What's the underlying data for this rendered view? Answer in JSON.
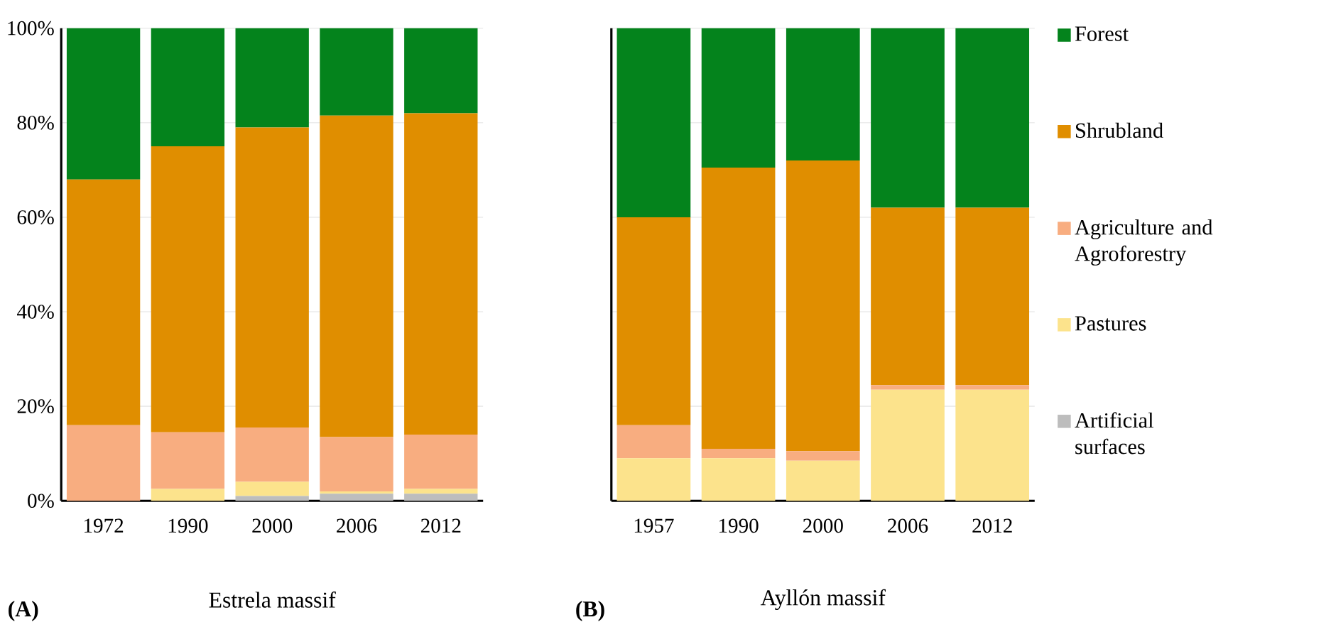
{
  "chart_data": [
    {
      "type": "bar",
      "stacked": true,
      "title": "Estrela massif",
      "annotations": [
        "(A)"
      ],
      "categories": [
        "1972",
        "1990",
        "2000",
        "2006",
        "2012"
      ],
      "ylim": [
        0,
        100
      ],
      "yticks": [
        {
          "value": 0,
          "label": "0%"
        },
        {
          "value": 20,
          "label": "20%"
        },
        {
          "value": 40,
          "label": "40%"
        },
        {
          "value": 60,
          "label": "60%"
        },
        {
          "value": 80,
          "label": "80%"
        },
        {
          "value": 100,
          "label": "100%"
        }
      ],
      "grid": "y",
      "legend": false,
      "series": [
        {
          "color": "#bdbdbd",
          "values": [
            0,
            0,
            1,
            1.5,
            1.5
          ]
        },
        {
          "color": "#fce38c",
          "values": [
            0,
            2.5,
            3,
            0.5,
            1
          ]
        },
        {
          "color": "#f8ad80",
          "values": [
            16,
            12,
            11.5,
            11.5,
            11.5
          ]
        },
        {
          "color": "#e08e00",
          "values": [
            52,
            60.5,
            63.5,
            68,
            68
          ]
        },
        {
          "color": "#04831c",
          "values": [
            32,
            25,
            21,
            18.5,
            18
          ]
        }
      ]
    },
    {
      "type": "bar",
      "stacked": true,
      "title": "Ayllón massif",
      "annotations": [
        "(B)"
      ],
      "categories": [
        "1957",
        "1990",
        "2000",
        "2006",
        "2012"
      ],
      "ylim": [
        0,
        100
      ],
      "yticks": [
        0,
        20,
        40,
        60,
        80,
        100
      ],
      "tick_labels": "x",
      "grid": "y",
      "legend": "right",
      "series": [
        {
          "name": "Artificial surfaces",
          "color": "#bdbdbd",
          "values": [
            0,
            0,
            0,
            0,
            0
          ]
        },
        {
          "name": "Pastures",
          "color": "#fce38c",
          "values": [
            9,
            9,
            8.5,
            23.5,
            23.5
          ]
        },
        {
          "name": "Agriculture and Agroforestry",
          "color": "#f8ad80",
          "values": [
            7,
            2,
            2,
            1,
            1
          ]
        },
        {
          "name": "Shrubland",
          "color": "#e08e00",
          "values": [
            44,
            59.5,
            61.5,
            37.5,
            37.5
          ]
        },
        {
          "name": "Forest",
          "color": "#04831c",
          "values": [
            40,
            29.5,
            28,
            38,
            38
          ]
        }
      ]
    }
  ]
}
